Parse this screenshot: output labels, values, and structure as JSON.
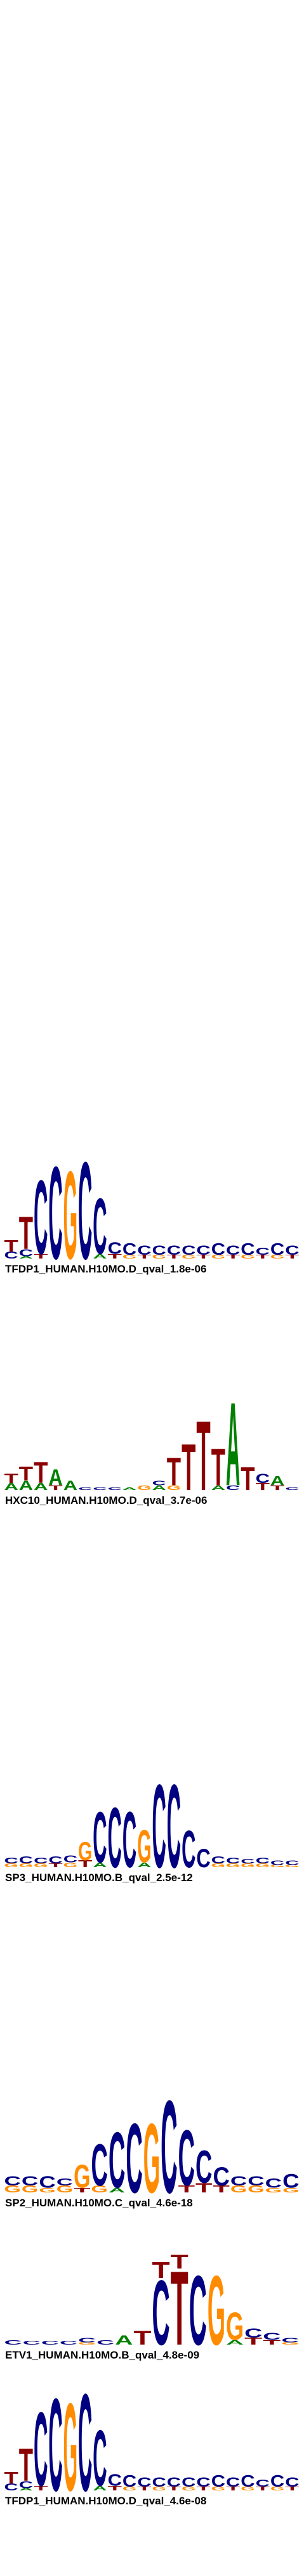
{
  "logos": [
    {
      "label": "TFDP1_HUMAN.H10MO.D_qval_1.8e-06",
      "columns": [
        [
          [
            "C",
            0.15
          ],
          [
            "T",
            0.25
          ]
        ],
        [
          [
            "A",
            0.05
          ],
          [
            "C",
            0.15
          ],
          [
            "T",
            0.7
          ]
        ],
        [
          [
            "T",
            0.1
          ],
          [
            "C",
            1.6
          ]
        ],
        [
          [
            "C",
            2.0
          ]
        ],
        [
          [
            "G",
            1.9
          ]
        ],
        [
          [
            "C",
            2.1
          ]
        ],
        [
          [
            "A",
            0.1
          ],
          [
            "C",
            1.2
          ]
        ],
        [
          [
            "T",
            0.1
          ],
          [
            "C",
            0.25
          ]
        ],
        [
          [
            "G",
            0.08
          ],
          [
            "C",
            0.25
          ]
        ],
        [
          [
            "T",
            0.08
          ],
          [
            "C",
            0.2
          ]
        ],
        [
          [
            "G",
            0.08
          ],
          [
            "C",
            0.2
          ]
        ],
        [
          [
            "T",
            0.08
          ],
          [
            "C",
            0.2
          ]
        ],
        [
          [
            "G",
            0.08
          ],
          [
            "C",
            0.2
          ]
        ],
        [
          [
            "T",
            0.08
          ],
          [
            "C",
            0.2
          ]
        ],
        [
          [
            "G",
            0.08
          ],
          [
            "C",
            0.25
          ]
        ],
        [
          [
            "T",
            0.08
          ],
          [
            "C",
            0.2
          ]
        ],
        [
          [
            "G",
            0.08
          ],
          [
            "C",
            0.25
          ]
        ],
        [
          [
            "T",
            0.08
          ],
          [
            "C",
            0.15
          ]
        ],
        [
          [
            "G",
            0.08
          ],
          [
            "C",
            0.25
          ]
        ],
        [
          [
            "T",
            0.08
          ],
          [
            "C",
            0.2
          ]
        ]
      ]
    },
    {
      "label": "HXC10_HUMAN.H10MO.D_qval_3.7e-06",
      "columns": [
        [
          [
            "A",
            0.15
          ],
          [
            "T",
            0.2
          ]
        ],
        [
          [
            "A",
            0.2
          ],
          [
            "T",
            0.3
          ]
        ],
        [
          [
            "A",
            0.15
          ],
          [
            "T",
            0.45
          ]
        ],
        [
          [
            "T",
            0.1
          ],
          [
            "A",
            0.35
          ]
        ],
        [
          [
            "A",
            0.2
          ]
        ],
        [
          [
            "C",
            0.05
          ]
        ],
        [
          [
            "C",
            0.05
          ]
        ],
        [
          [
            "C",
            0.05
          ]
        ],
        [
          [
            "A",
            0.05
          ]
        ],
        [
          [
            "G",
            0.1
          ]
        ],
        [
          [
            "A",
            0.1
          ],
          [
            "C",
            0.1
          ]
        ],
        [
          [
            "G",
            0.1
          ],
          [
            "T",
            0.6
          ]
        ],
        [
          [
            "T",
            1.0
          ]
        ],
        [
          [
            "T",
            1.5
          ]
        ],
        [
          [
            "A",
            0.1
          ],
          [
            "T",
            0.8
          ]
        ],
        [
          [
            "C",
            0.1
          ],
          [
            "A",
            1.8
          ]
        ],
        [
          [
            "T",
            0.5
          ]
        ],
        [
          [
            "T",
            0.15
          ],
          [
            "C",
            0.2
          ]
        ],
        [
          [
            "T",
            0.1
          ],
          [
            "A",
            0.2
          ]
        ],
        [
          [
            "C",
            0.05
          ]
        ]
      ]
    },
    {
      "label": "SP3_HUMAN.H10MO.B_qval_2.5e-12",
      "columns": [
        [
          [
            "G",
            0.08
          ],
          [
            "C",
            0.12
          ]
        ],
        [
          [
            "G",
            0.08
          ],
          [
            "C",
            0.15
          ]
        ],
        [
          [
            "G",
            0.08
          ],
          [
            "C",
            0.12
          ]
        ],
        [
          [
            "T",
            0.08
          ],
          [
            "C",
            0.15
          ]
        ],
        [
          [
            "G",
            0.1
          ],
          [
            "C",
            0.15
          ]
        ],
        [
          [
            "T",
            0.15
          ],
          [
            "G",
            0.4
          ]
        ],
        [
          [
            "A",
            0.1
          ],
          [
            "C",
            1.1
          ]
        ],
        [
          [
            "C",
            1.3
          ]
        ],
        [
          [
            "C",
            1.2
          ]
        ],
        [
          [
            "A",
            0.1
          ],
          [
            "G",
            0.7
          ]
        ],
        [
          [
            "C",
            1.8
          ]
        ],
        [
          [
            "C",
            1.8
          ]
        ],
        [
          [
            "C",
            0.8
          ]
        ],
        [
          [
            "C",
            0.4
          ]
        ],
        [
          [
            "G",
            0.08
          ],
          [
            "C",
            0.15
          ]
        ],
        [
          [
            "G",
            0.08
          ],
          [
            "C",
            0.12
          ]
        ],
        [
          [
            "G",
            0.08
          ],
          [
            "C",
            0.1
          ]
        ],
        [
          [
            "G",
            0.08
          ],
          [
            "C",
            0.12
          ]
        ],
        [
          [
            "G",
            0.05
          ],
          [
            "C",
            0.1
          ]
        ],
        [
          [
            "G",
            0.05
          ],
          [
            "C",
            0.1
          ]
        ]
      ]
    },
    {
      "label": "SP2_HUMAN.H10MO.C_qval_4.6e-18",
      "columns": [
        [
          [
            "G",
            0.15
          ],
          [
            "C",
            0.2
          ]
        ],
        [
          [
            "G",
            0.15
          ],
          [
            "C",
            0.2
          ]
        ],
        [
          [
            "G",
            0.1
          ],
          [
            "C",
            0.25
          ]
        ],
        [
          [
            "G",
            0.15
          ],
          [
            "C",
            0.15
          ]
        ],
        [
          [
            "T",
            0.1
          ],
          [
            "G",
            0.5
          ]
        ],
        [
          [
            "G",
            0.15
          ],
          [
            "C",
            0.9
          ]
        ],
        [
          [
            "A",
            0.1
          ],
          [
            "C",
            1.2
          ]
        ],
        [
          [
            "C",
            1.5
          ]
        ],
        [
          [
            "G",
            1.5
          ]
        ],
        [
          [
            "C",
            2.0
          ]
        ],
        [
          [
            "T",
            0.15
          ],
          [
            "C",
            1.2
          ]
        ],
        [
          [
            "T",
            0.2
          ],
          [
            "C",
            0.7
          ]
        ],
        [
          [
            "T",
            0.15
          ],
          [
            "C",
            0.4
          ]
        ],
        [
          [
            "G",
            0.15
          ],
          [
            "C",
            0.2
          ]
        ],
        [
          [
            "G",
            0.15
          ],
          [
            "C",
            0.2
          ]
        ],
        [
          [
            "G",
            0.1
          ],
          [
            "C",
            0.2
          ]
        ],
        [
          [
            "G",
            0.1
          ],
          [
            "C",
            0.3
          ]
        ]
      ]
    },
    {
      "label": "ETV1_HUMAN.H10MO.B_qval_4.8e-09",
      "columns": [
        [
          [
            "C",
            0.1
          ]
        ],
        [
          [
            "C",
            0.08
          ]
        ],
        [
          [
            "C",
            0.08
          ]
        ],
        [
          [
            "C",
            0.08
          ]
        ],
        [
          [
            "G",
            0.05
          ],
          [
            "C",
            0.1
          ]
        ],
        [
          [
            "C",
            0.1
          ]
        ],
        [
          [
            "A",
            0.2
          ]
        ],
        [
          [
            "T",
            0.3
          ]
        ],
        [
          [
            "C",
            1.4
          ],
          [
            "T",
            0.35
          ]
        ],
        [
          [
            "T",
            1.6
          ],
          [
            "T",
            0.3
          ]
        ],
        [
          [
            "C",
            1.5
          ]
        ],
        [
          [
            "G",
            1.5
          ]
        ],
        [
          [
            "A",
            0.1
          ],
          [
            "G",
            0.6
          ]
        ],
        [
          [
            "T",
            0.15
          ],
          [
            "C",
            0.2
          ]
        ],
        [
          [
            "T",
            0.1
          ],
          [
            "C",
            0.15
          ]
        ],
        [
          [
            "G",
            0.05
          ],
          [
            "C",
            0.1
          ]
        ]
      ]
    },
    {
      "label": "TFDP1_HUMAN.H10MO.D_qval_4.6e-08",
      "columns": [
        [
          [
            "C",
            0.15
          ],
          [
            "T",
            0.25
          ]
        ],
        [
          [
            "A",
            0.05
          ],
          [
            "C",
            0.15
          ],
          [
            "T",
            0.7
          ]
        ],
        [
          [
            "T",
            0.1
          ],
          [
            "C",
            1.6
          ]
        ],
        [
          [
            "C",
            2.0
          ]
        ],
        [
          [
            "G",
            1.9
          ]
        ],
        [
          [
            "C",
            2.1
          ]
        ],
        [
          [
            "A",
            0.1
          ],
          [
            "C",
            1.2
          ]
        ],
        [
          [
            "T",
            0.1
          ],
          [
            "C",
            0.25
          ]
        ],
        [
          [
            "G",
            0.08
          ],
          [
            "C",
            0.25
          ]
        ],
        [
          [
            "T",
            0.08
          ],
          [
            "C",
            0.2
          ]
        ],
        [
          [
            "G",
            0.08
          ],
          [
            "C",
            0.2
          ]
        ],
        [
          [
            "T",
            0.08
          ],
          [
            "C",
            0.2
          ]
        ],
        [
          [
            "G",
            0.08
          ],
          [
            "C",
            0.2
          ]
        ],
        [
          [
            "T",
            0.08
          ],
          [
            "C",
            0.2
          ]
        ],
        [
          [
            "G",
            0.08
          ],
          [
            "C",
            0.25
          ]
        ],
        [
          [
            "T",
            0.08
          ],
          [
            "C",
            0.2
          ]
        ],
        [
          [
            "G",
            0.08
          ],
          [
            "C",
            0.25
          ]
        ],
        [
          [
            "T",
            0.08
          ],
          [
            "C",
            0.15
          ]
        ],
        [
          [
            "G",
            0.08
          ],
          [
            "C",
            0.25
          ]
        ],
        [
          [
            "T",
            0.08
          ],
          [
            "C",
            0.2
          ]
        ]
      ]
    }
  ]
}
